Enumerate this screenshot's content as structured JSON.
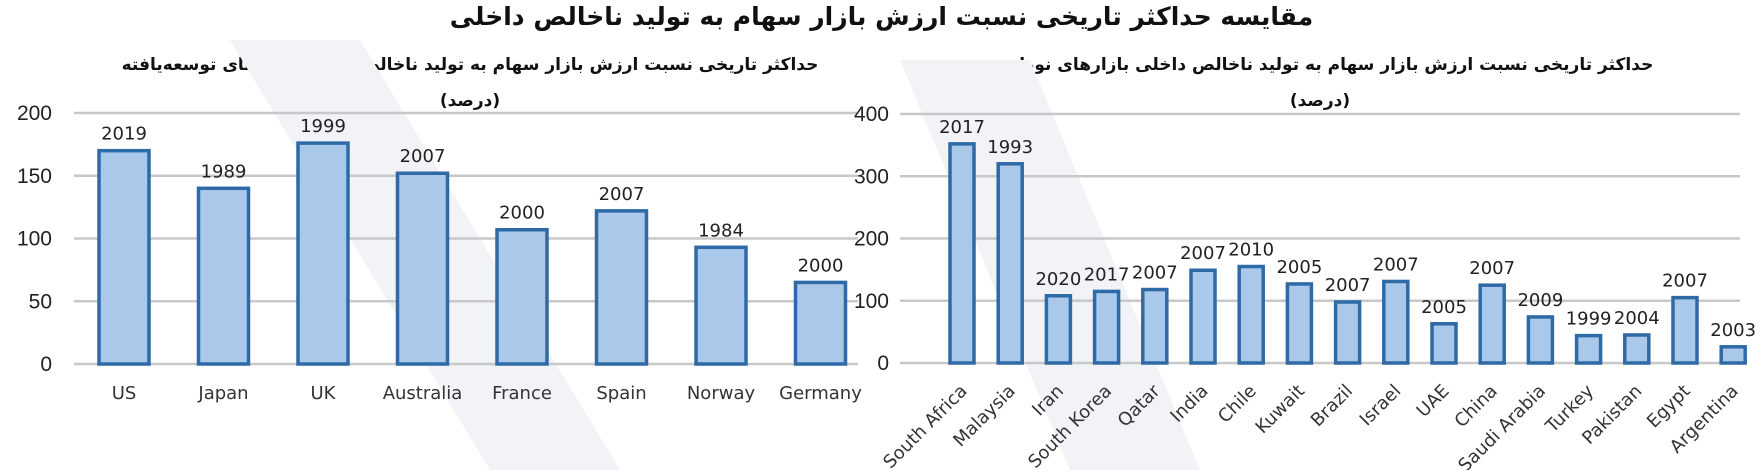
{
  "title": "مقایسه حداکثر تاریخی نسبت ارزش بازار سهام به تولید ناخالص داخلی",
  "chart_data": [
    {
      "type": "bar",
      "title": "حداکثر تاریخی نسبت ارزش بازار سهام به تولید ناخالص داخلی بازارهای توسعه‌یافته",
      "subtitle": "(درصد)",
      "categories": [
        "US",
        "Japan",
        "UK",
        "Australia",
        "France",
        "Spain",
        "Norway",
        "Germany"
      ],
      "values": [
        170,
        140,
        176,
        152,
        107,
        122,
        93,
        65
      ],
      "data_labels": [
        "2019",
        "1989",
        "1999",
        "2007",
        "2000",
        "2007",
        "1984",
        "2000"
      ],
      "ylim": [
        0,
        200
      ],
      "yticks": [
        "0",
        "50",
        "100",
        "150",
        "200"
      ],
      "grid": true,
      "legend": "none"
    },
    {
      "type": "bar",
      "title": "حداکثر تاریخی نسبت ارزش بازار سهام به تولید ناخالص داخلی بازارهای نوظهور",
      "subtitle": "(درصد)",
      "categories": [
        "South Africa",
        "Malaysia",
        "Iran",
        "South Korea",
        "Qatar",
        "India",
        "Chile",
        "Kuwait",
        "Brazil",
        "Israel",
        "UAE",
        "China",
        "Saudi Arabia",
        "Turkey",
        "Pakistan",
        "Egypt",
        "Argentina"
      ],
      "values": [
        352,
        320,
        108,
        115,
        118,
        149,
        155,
        127,
        98,
        131,
        63,
        125,
        74,
        44,
        45,
        105,
        26
      ],
      "data_labels": [
        "2017",
        "1993",
        "2020",
        "2017",
        "2007",
        "2007",
        "2010",
        "2005",
        "2007",
        "2007",
        "2005",
        "2007",
        "2009",
        "1999",
        "2004",
        "2007",
        "2003"
      ],
      "ylim": [
        0,
        400
      ],
      "yticks": [
        "0",
        "100",
        "200",
        "300",
        "400"
      ],
      "grid": true,
      "legend": "none"
    }
  ]
}
